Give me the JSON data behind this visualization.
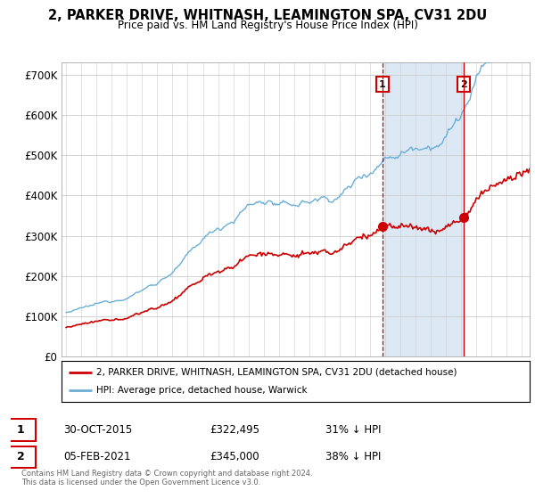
{
  "title_line1": "2, PARKER DRIVE, WHITNASH, LEAMINGTON SPA, CV31 2DU",
  "title_line2": "Price paid vs. HM Land Registry's House Price Index (HPI)",
  "yticks": [
    0,
    100000,
    200000,
    300000,
    400000,
    500000,
    600000,
    700000
  ],
  "ytick_labels": [
    "£0",
    "£100K",
    "£200K",
    "£300K",
    "£400K",
    "£500K",
    "£600K",
    "£700K"
  ],
  "hpi_color": "#6baed6",
  "price_color": "#cc0000",
  "sale1_date": "30-OCT-2015",
  "sale1_price": "322,495",
  "sale1_pct": "31% ↓ HPI",
  "sale2_date": "05-FEB-2021",
  "sale2_price": "345,000",
  "sale2_pct": "38% ↓ HPI",
  "legend_label1": "2, PARKER DRIVE, WHITNASH, LEAMINGTON SPA, CV31 2DU (detached house)",
  "legend_label2": "HPI: Average price, detached house, Warwick",
  "footer": "Contains HM Land Registry data © Crown copyright and database right 2024.\nThis data is licensed under the Open Government Licence v3.0.",
  "background_color": "#ffffff",
  "plot_bg_color": "#ffffff",
  "shade_color": "#dce9f5"
}
